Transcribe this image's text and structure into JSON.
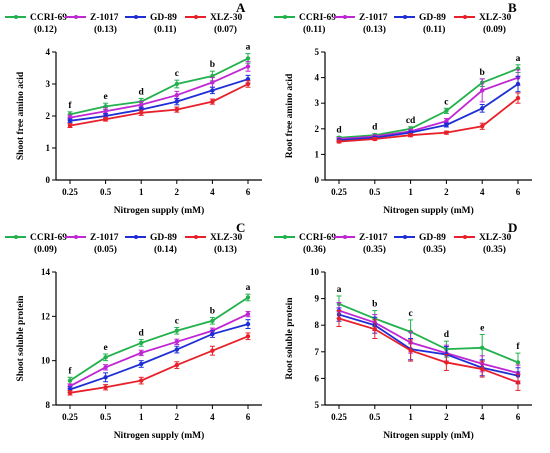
{
  "figure": {
    "background": "#ffffff"
  },
  "chart_data": [
    {
      "type": "line",
      "panel_label": "A",
      "xlabel": "Nitrogen supply (mM)",
      "ylabel": "Shoot free amino acid",
      "categories": [
        "0.25",
        "0.5",
        "1",
        "2",
        "4",
        "6"
      ],
      "ylim": [
        0,
        4
      ],
      "yticks": [
        "0",
        "1",
        "2",
        "3",
        "4"
      ],
      "grid": false,
      "legend_position": "top",
      "series": [
        {
          "name": "CCRI-69",
          "legend_value": "(0.12)",
          "color": "#22b14c",
          "values": [
            2.05,
            2.3,
            2.45,
            3.0,
            3.25,
            3.8
          ],
          "errors": [
            0.08,
            0.1,
            0.1,
            0.12,
            0.15,
            0.15
          ]
        },
        {
          "name": "Z-1017",
          "legend_value": "(0.13)",
          "color": "#c026d3",
          "values": [
            1.95,
            2.15,
            2.35,
            2.65,
            3.05,
            3.55
          ],
          "errors": [
            0.08,
            0.1,
            0.1,
            0.12,
            0.15,
            0.15
          ]
        },
        {
          "name": "GD-89",
          "legend_value": "(0.11)",
          "color": "#1f2fd6",
          "values": [
            1.85,
            2.0,
            2.2,
            2.45,
            2.8,
            3.15
          ],
          "errors": [
            0.06,
            0.08,
            0.08,
            0.1,
            0.1,
            0.12
          ]
        },
        {
          "name": "XLZ-30",
          "legend_value": "(0.07)",
          "color": "#e8202a",
          "values": [
            1.7,
            1.9,
            2.1,
            2.2,
            2.45,
            3.0
          ],
          "errors": [
            0.06,
            0.06,
            0.08,
            0.08,
            0.08,
            0.1
          ]
        }
      ],
      "annotations": [
        "f",
        "e",
        "d",
        "c",
        "b",
        "a"
      ]
    },
    {
      "type": "line",
      "panel_label": "B",
      "xlabel": "Nitrogen supply (mM)",
      "ylabel": "Root free amino acid",
      "categories": [
        "0.25",
        "0.5",
        "1",
        "2",
        "4",
        "6"
      ],
      "ylim": [
        0,
        5
      ],
      "yticks": [
        "0",
        "1",
        "2",
        "3",
        "4",
        "5"
      ],
      "grid": false,
      "legend_position": "top",
      "series": [
        {
          "name": "CCRI-69",
          "legend_value": "(0.11)",
          "color": "#22b14c",
          "values": [
            1.65,
            1.75,
            2.0,
            2.7,
            3.8,
            4.35
          ],
          "errors": [
            0.05,
            0.06,
            0.08,
            0.1,
            0.15,
            0.15
          ]
        },
        {
          "name": "Z-1017",
          "legend_value": "(0.13)",
          "color": "#c026d3",
          "values": [
            1.6,
            1.7,
            1.9,
            2.3,
            3.5,
            4.0
          ],
          "errors": [
            0.05,
            0.06,
            0.08,
            0.1,
            0.45,
            0.3
          ]
        },
        {
          "name": "GD-89",
          "legend_value": "(0.11)",
          "color": "#1f2fd6",
          "values": [
            1.55,
            1.65,
            1.85,
            2.15,
            2.8,
            3.75
          ],
          "errors": [
            0.05,
            0.05,
            0.06,
            0.08,
            0.15,
            0.3
          ]
        },
        {
          "name": "XLZ-30",
          "legend_value": "(0.09)",
          "color": "#e8202a",
          "values": [
            1.5,
            1.6,
            1.75,
            1.85,
            2.1,
            3.2
          ],
          "errors": [
            0.05,
            0.05,
            0.06,
            0.06,
            0.12,
            0.2
          ]
        }
      ],
      "annotations": [
        "d",
        "d",
        "cd",
        "c",
        "b",
        "a"
      ]
    },
    {
      "type": "line",
      "panel_label": "C",
      "xlabel": "Nitrogen supply (mM)",
      "ylabel": "Shoot soluble protein",
      "categories": [
        "0.25",
        "0.5",
        "1",
        "2",
        "4",
        "6"
      ],
      "ylim": [
        8,
        14
      ],
      "yticks": [
        "8",
        "10",
        "12",
        "14"
      ],
      "grid": false,
      "legend_position": "top",
      "series": [
        {
          "name": "CCRI-69",
          "legend_value": "(0.09)",
          "color": "#22b14c",
          "values": [
            9.1,
            10.15,
            10.8,
            11.35,
            11.8,
            12.85
          ],
          "errors": [
            0.15,
            0.15,
            0.15,
            0.15,
            0.15,
            0.15
          ]
        },
        {
          "name": "Z-1017",
          "legend_value": "(0.05)",
          "color": "#c026d3",
          "values": [
            8.85,
            9.7,
            10.35,
            10.85,
            11.35,
            12.1
          ],
          "errors": [
            0.1,
            0.12,
            0.12,
            0.12,
            0.12,
            0.12
          ]
        },
        {
          "name": "GD-89",
          "legend_value": "(0.14)",
          "color": "#1f2fd6",
          "values": [
            8.7,
            9.25,
            9.85,
            10.5,
            11.2,
            11.65
          ],
          "errors": [
            0.12,
            0.2,
            0.15,
            0.15,
            0.15,
            0.2
          ]
        },
        {
          "name": "XLZ-30",
          "legend_value": "(0.13)",
          "color": "#e8202a",
          "values": [
            8.55,
            8.8,
            9.1,
            9.8,
            10.45,
            11.1
          ],
          "errors": [
            0.1,
            0.12,
            0.15,
            0.15,
            0.2,
            0.15
          ]
        }
      ],
      "annotations": [
        "f",
        "e",
        "d",
        "c",
        "b",
        "a"
      ]
    },
    {
      "type": "line",
      "panel_label": "D",
      "xlabel": "Nitrogen supply (mM)",
      "ylabel": "Root soluble protein",
      "categories": [
        "0.25",
        "0.5",
        "1",
        "2",
        "4",
        "6"
      ],
      "ylim": [
        5,
        10
      ],
      "yticks": [
        "5",
        "6",
        "7",
        "8",
        "9",
        "10"
      ],
      "grid": false,
      "legend_position": "top",
      "series": [
        {
          "name": "CCRI-69",
          "legend_value": "(0.36)",
          "color": "#22b14c",
          "values": [
            8.8,
            8.25,
            7.75,
            7.1,
            7.15,
            6.6
          ],
          "errors": [
            0.3,
            0.3,
            0.45,
            0.3,
            0.5,
            0.35
          ]
        },
        {
          "name": "Z-1017",
          "legend_value": "(0.35)",
          "color": "#c026d3",
          "values": [
            8.55,
            8.1,
            7.35,
            6.95,
            6.55,
            6.2
          ],
          "errors": [
            0.3,
            0.3,
            0.4,
            0.3,
            0.3,
            0.3
          ]
        },
        {
          "name": "GD-89",
          "legend_value": "(0.35)",
          "color": "#1f2fd6",
          "values": [
            8.4,
            8.0,
            7.1,
            6.9,
            6.4,
            6.1
          ],
          "errors": [
            0.25,
            0.3,
            0.4,
            0.3,
            0.3,
            0.3
          ]
        },
        {
          "name": "XLZ-30",
          "legend_value": "(0.35)",
          "color": "#e8202a",
          "values": [
            8.25,
            7.85,
            7.05,
            6.6,
            6.35,
            5.85
          ],
          "errors": [
            0.3,
            0.35,
            0.4,
            0.3,
            0.3,
            0.3
          ]
        }
      ],
      "annotations": [
        "a",
        "b",
        "c",
        "d",
        "e",
        "f"
      ]
    }
  ]
}
